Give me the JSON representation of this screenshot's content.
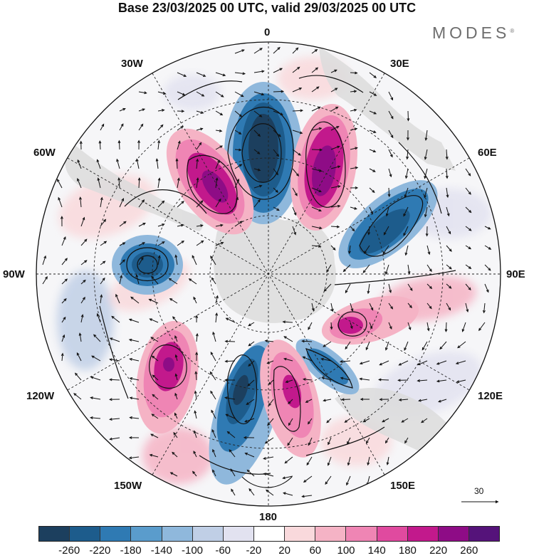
{
  "title": "Base 23/03/2025 00 UTC, valid 29/03/2025 00 UTC",
  "brand": {
    "name": "MODES",
    "mark": "®"
  },
  "map": {
    "projection": "south polar stereographic",
    "longitude_labels": {
      "top": "0",
      "bottom": "180",
      "left": "90W",
      "right": "90E",
      "upper_left_1": "30W",
      "upper_left_2": "60W",
      "upper_right_1": "30E",
      "upper_right_2": "60E",
      "lower_left_1": "120W",
      "lower_left_2": "150W",
      "lower_right_1": "120E",
      "lower_right_2": "150E"
    }
  },
  "vector_reference": {
    "value": "30"
  },
  "colorbar": {
    "colors": [
      "#1c3f5e",
      "#1d5c8c",
      "#2f7ab3",
      "#5a9ccc",
      "#8fb8dc",
      "#c0cfe6",
      "#e2e2f0",
      "#ffffff",
      "#f9d9dc",
      "#f5b3c5",
      "#ef85b4",
      "#e04a9f",
      "#c2198c",
      "#8e0c86",
      "#55137a"
    ],
    "tick_labels": [
      "-260",
      "-220",
      "-180",
      "-140",
      "-100",
      "-60",
      "-20",
      "20",
      "60",
      "100",
      "140",
      "180",
      "220",
      "260"
    ]
  }
}
